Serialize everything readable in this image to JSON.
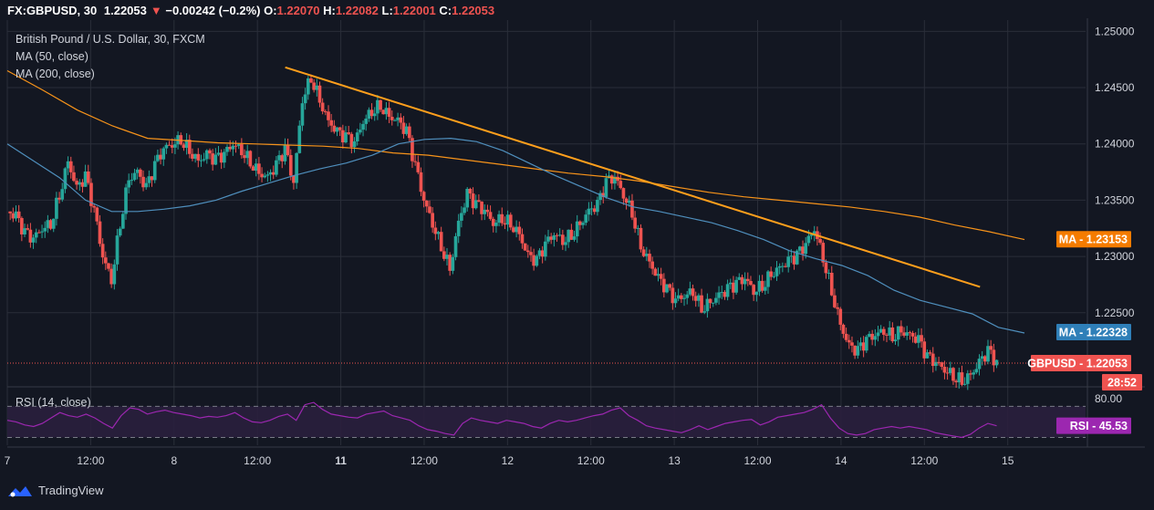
{
  "symbol_bar": {
    "symbol": "FX:GBPUSD, 30",
    "last": "1.22053",
    "change": "−0.00242 (−0.2%)",
    "o_label": "O:",
    "o": "1.22070",
    "h_label": "H:",
    "h": "1.22082",
    "l_label": "L:",
    "l": "1.22001",
    "c_label": "C:",
    "c": "1.22053",
    "down_arrow": "▼"
  },
  "legend": {
    "title": "British Pound / U.S. Dollar, 30, FXCM",
    "ma50": "MA (50, close)",
    "ma200": "MA (200, close)",
    "rsi": "RSI (14, close)"
  },
  "footer": {
    "brand": "TradingView",
    "logo_icon": "tradingview-logo-icon"
  },
  "colors": {
    "bg": "#131722",
    "grid": "#2a2e39",
    "up": "#26a69a",
    "down": "#ef5350",
    "ma50": "#4f8fbd",
    "ma200": "#f7931a",
    "trend": "#ff9f1c",
    "rsi": "#9c27b0",
    "rsi_band": "#2a1f3d",
    "axis_text": "#d1d4dc"
  },
  "chart_data": [
    {
      "type": "candlestick",
      "symbol": "GBPUSD",
      "timeframe": "30",
      "title": "British Pound / U.S. Dollar, 30, FXCM",
      "ylim": [
        1.2185,
        1.251
      ],
      "y_ticks": [
        "1.25000",
        "1.24500",
        "1.24000",
        "1.23500",
        "1.23000",
        "1.22500"
      ],
      "x_ticks": [
        "7",
        "12:00",
        "8",
        "12:00",
        "11",
        "12:00",
        "12",
        "12:00",
        "13",
        "12:00",
        "14",
        "12:00",
        "15"
      ],
      "bold_x_ticks": [
        "11"
      ],
      "x_tick_slots": [
        0,
        3,
        6,
        9,
        12,
        15,
        18,
        21,
        24,
        27,
        30,
        33,
        36
      ],
      "slots_total": 38.8,
      "close_path": [
        1.234,
        1.2335,
        1.232,
        1.2315,
        1.2325,
        1.233,
        1.2355,
        1.2385,
        1.236,
        1.237,
        1.234,
        1.23,
        1.228,
        1.233,
        1.237,
        1.2375,
        1.236,
        1.238,
        1.2395,
        1.24,
        1.2405,
        1.2395,
        1.2385,
        1.239,
        1.2385,
        1.239,
        1.24,
        1.2395,
        1.2385,
        1.2375,
        1.237,
        1.238,
        1.2395,
        1.2365,
        1.244,
        1.246,
        1.244,
        1.242,
        1.241,
        1.2405,
        1.24,
        1.242,
        1.243,
        1.2435,
        1.2425,
        1.242,
        1.241,
        1.238,
        1.235,
        1.233,
        1.231,
        1.229,
        1.233,
        1.2355,
        1.2345,
        1.234,
        1.233,
        1.2335,
        1.233,
        1.232,
        1.23,
        1.2295,
        1.231,
        1.232,
        1.2315,
        1.232,
        1.233,
        1.234,
        1.2345,
        1.2365,
        1.237,
        1.2355,
        1.234,
        1.231,
        1.2295,
        1.228,
        1.227,
        1.226,
        1.2265,
        1.227,
        1.2255,
        1.226,
        1.2265,
        1.227,
        1.2275,
        1.228,
        1.227,
        1.2275,
        1.2285,
        1.229,
        1.2295,
        1.23,
        1.231,
        1.2325,
        1.23,
        1.227,
        1.224,
        1.222,
        1.2215,
        1.2225,
        1.223,
        1.2235,
        1.223,
        1.2235,
        1.223,
        1.2225,
        1.221,
        1.2205,
        1.22,
        1.2195,
        1.219,
        1.2195,
        1.2205,
        1.2215,
        1.2205
      ],
      "ma50": [
        1.24,
        1.2385,
        1.237,
        1.235,
        1.234,
        1.234,
        1.2342,
        1.2345,
        1.235,
        1.2358,
        1.2365,
        1.2372,
        1.2378,
        1.2383,
        1.239,
        1.24,
        1.2404,
        1.2405,
        1.2402,
        1.2394,
        1.2383,
        1.2372,
        1.2362,
        1.2352,
        1.2344,
        1.234,
        1.2335,
        1.233,
        1.2323,
        1.2315,
        1.2305,
        1.2298,
        1.2292,
        1.2283,
        1.227,
        1.2261,
        1.2255,
        1.2249,
        1.2237,
        1.2232
      ],
      "ma200": [
        1.2465,
        1.2448,
        1.243,
        1.2416,
        1.2405,
        1.2403,
        1.2401,
        1.24,
        1.2399,
        1.2398,
        1.2396,
        1.2392,
        1.239,
        1.2386,
        1.2382,
        1.2378,
        1.2374,
        1.2371,
        1.2367,
        1.2362,
        1.2357,
        1.2353,
        1.235,
        1.2347,
        1.2344,
        1.234,
        1.2335,
        1.2328,
        1.2322,
        1.2315
      ],
      "trendline": {
        "from": [
          10.0,
          1.2468
        ],
        "to": [
          35.0,
          1.2273
        ]
      },
      "last_price_line": 1.22053,
      "labels": [
        {
          "text": "MA",
          "value": "1.23153",
          "y": 1.23153,
          "color": "#f57c00"
        },
        {
          "text": "MA",
          "value": "1.22328",
          "y": 1.22328,
          "color": "#2f7fb8"
        },
        {
          "text": "GBPUSD",
          "value": "1.22053",
          "y": 1.22053,
          "color": "#ef5350"
        }
      ],
      "countdown": "28:52"
    },
    {
      "type": "line",
      "title": "RSI (14, close)",
      "ylim": [
        20,
        95
      ],
      "tick_label": "80.00",
      "band": [
        30,
        70
      ],
      "last": "45.53",
      "label_text": "RSI",
      "values": [
        52,
        50,
        46,
        44,
        48,
        55,
        62,
        58,
        56,
        60,
        55,
        48,
        42,
        58,
        68,
        66,
        60,
        63,
        65,
        62,
        60,
        58,
        55,
        57,
        56,
        58,
        62,
        55,
        50,
        49,
        52,
        57,
        60,
        52,
        72,
        75,
        66,
        60,
        58,
        56,
        55,
        60,
        62,
        64,
        58,
        55,
        52,
        45,
        40,
        38,
        35,
        33,
        48,
        55,
        52,
        50,
        48,
        52,
        50,
        48,
        44,
        42,
        48,
        52,
        50,
        52,
        55,
        58,
        60,
        65,
        68,
        58,
        52,
        45,
        42,
        40,
        38,
        36,
        40,
        45,
        40,
        44,
        48,
        50,
        52,
        53,
        46,
        50,
        56,
        58,
        60,
        62,
        66,
        72,
        55,
        42,
        35,
        33,
        35,
        40,
        42,
        44,
        42,
        44,
        42,
        40,
        36,
        34,
        32,
        30,
        34,
        42,
        48,
        45
      ]
    }
  ]
}
